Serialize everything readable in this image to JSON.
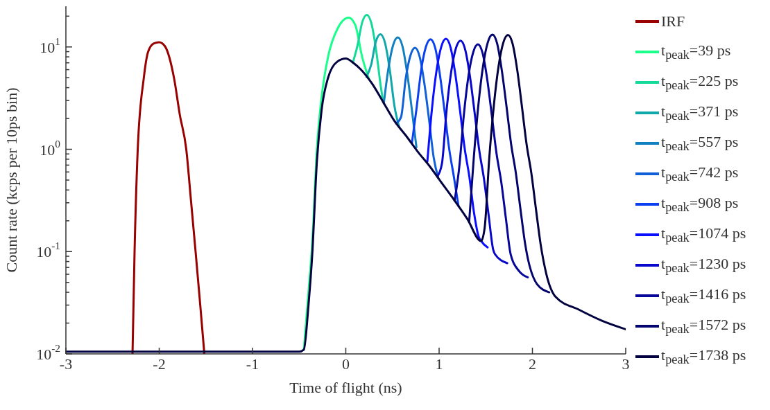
{
  "chart_data": {
    "type": "line",
    "xlabel": "Time of flight (ns)",
    "ylabel": "Count rate (kcps per 10ps bin)",
    "log": "y",
    "legend": "right",
    "marker": "none",
    "line_style": "solid",
    "xlim": [
      -3,
      3
    ],
    "xticks": [
      -3,
      -2,
      -1,
      0,
      1,
      2,
      3
    ],
    "ylim": [
      0.01,
      25
    ],
    "yticks": [
      {
        "value": 0.01,
        "label": "10$^{-2}$"
      },
      {
        "value": 0.02,
        "label": null
      },
      {
        "value": 0.03,
        "label": null
      },
      {
        "value": 0.04,
        "label": null
      },
      {
        "value": 0.05,
        "label": null
      },
      {
        "value": 0.06,
        "label": null
      },
      {
        "value": 0.07,
        "label": null
      },
      {
        "value": 0.08,
        "label": null
      },
      {
        "value": 0.09,
        "label": null
      },
      {
        "value": 0.1,
        "label": "10$^{-1}$"
      },
      {
        "value": 0.2,
        "label": null
      },
      {
        "value": 0.3,
        "label": null
      },
      {
        "value": 0.4,
        "label": null
      },
      {
        "value": 0.5,
        "label": null
      },
      {
        "value": 0.6,
        "label": null
      },
      {
        "value": 0.7,
        "label": null
      },
      {
        "value": 0.8,
        "label": null
      },
      {
        "value": 0.9,
        "label": null
      },
      {
        "value": 1,
        "label": "10$^{0}$"
      },
      {
        "value": 2,
        "label": null
      },
      {
        "value": 3,
        "label": null
      },
      {
        "value": 4,
        "label": null
      },
      {
        "value": 5,
        "label": null
      },
      {
        "value": 6,
        "label": null
      },
      {
        "value": 7,
        "label": null
      },
      {
        "value": 8,
        "label": null
      },
      {
        "value": 9,
        "label": null
      },
      {
        "value": 10,
        "label": "10$^{1}$"
      },
      {
        "value": 20,
        "label": null
      }
    ],
    "series": [
      {
        "name": "IRF",
        "color": "#990000",
        "x": [
          -2.286,
          -2.264,
          -2.23,
          -2.166,
          -2.12,
          -2.06,
          -2.0,
          -1.94,
          -1.84,
          -1.78,
          -1.71,
          -1.66,
          -1.61,
          -1.56,
          -1.516
        ],
        "values": [
          0.01,
          0.1,
          1.0,
          4.9,
          8.9,
          10.8,
          11.1,
          10.2,
          4.9,
          2.2,
          1.0,
          0.32,
          0.1,
          0.03,
          0.01
        ]
      },
      {
        "name": "t$_{peak}$=39 ps",
        "color": "#1aff8c",
        "x": [
          -0.45,
          -0.4,
          -0.36,
          -0.31,
          -0.26,
          -0.19,
          -0.09,
          0.03,
          0.1,
          0.175,
          0.25
        ],
        "values": [
          0.011,
          0.04,
          0.12,
          1.0,
          3.2,
          8,
          15,
          19.3,
          16.5,
          8,
          4.8
        ]
      },
      {
        "name": "t$_{peak}$=225 ps",
        "color": "#14d99a",
        "x": [
          0.075,
          0.125,
          0.175,
          0.225,
          0.275,
          0.325,
          0.375,
          0.4
        ],
        "values": [
          7.0,
          10.3,
          17.3,
          20.6,
          16.9,
          9.3,
          4.1,
          2.9
        ]
      },
      {
        "name": "t$_{peak}$=371 ps",
        "color": "#10a8a8",
        "x": [
          0.221,
          0.271,
          0.321,
          0.371,
          0.421,
          0.471,
          0.521,
          0.571
        ],
        "values": [
          5.1,
          6.65,
          11.2,
          13.3,
          10.9,
          6.0,
          2.66,
          1.66
        ]
      },
      {
        "name": "t$_{peak}$=557 ps",
        "color": "#1080c0",
        "x": [
          0.407,
          0.457,
          0.507,
          0.557,
          0.607,
          0.657,
          0.707,
          0.757
        ],
        "values": [
          2.8,
          6.2,
          10.4,
          12.4,
          10.2,
          5.6,
          2.48,
          1.05
        ]
      },
      {
        "name": "t$_{peak}$=742 ps",
        "color": "#1060d8",
        "x": [
          0.542,
          0.592,
          0.642,
          0.692,
          0.742,
          0.792,
          0.842,
          0.892,
          0.942,
          0.992
        ],
        "values": [
          1.8,
          2.06,
          4.9,
          8.2,
          9.8,
          8.0,
          4.4,
          1.96,
          0.83,
          0.52
        ]
      },
      {
        "name": "t$_{peak}$=908 ps",
        "color": "#0a40f0",
        "x": [
          0.708,
          0.758,
          0.808,
          0.858,
          0.908,
          0.958,
          1.008,
          1.058,
          1.108,
          1.158,
          1.208
        ],
        "values": [
          1.14,
          2.5,
          5.95,
          10.0,
          11.9,
          9.8,
          5.4,
          2.38,
          1.01,
          0.54,
          0.277
        ]
      },
      {
        "name": "t$_{peak}$=1074 ps",
        "color": "#0a10ff",
        "x": [
          0.874,
          0.924,
          0.974,
          1.024,
          1.074,
          1.124,
          1.174,
          1.224,
          1.274,
          1.324,
          1.374,
          1.424,
          1.45,
          1.52
        ],
        "values": [
          0.76,
          2.52,
          6.0,
          10.1,
          12,
          9.8,
          5.4,
          2.4,
          1.02,
          0.54,
          0.24,
          0.14,
          0.127,
          0.11
        ]
      },
      {
        "name": "t$_{peak}$=1230 ps",
        "color": "#0808cc",
        "x": [
          0.98,
          1.03,
          1.08,
          1.13,
          1.18,
          1.23,
          1.28,
          1.33,
          1.38,
          1.43,
          1.48,
          1.53,
          1.58,
          1.6,
          1.73
        ],
        "values": [
          0.54,
          0.72,
          2.4,
          5.75,
          9.7,
          11.5,
          9.4,
          5.2,
          2.3,
          0.98,
          0.52,
          0.23,
          0.104,
          0.094,
          0.077
        ]
      },
      {
        "name": "t$_{peak}$=1416 ps",
        "color": "#060699",
        "x": [
          1.166,
          1.216,
          1.266,
          1.316,
          1.366,
          1.416,
          1.466,
          1.516,
          1.566,
          1.616,
          1.666,
          1.716,
          1.766,
          1.86,
          1.95
        ],
        "values": [
          0.314,
          0.67,
          2.2,
          5.3,
          8.9,
          10.6,
          8.7,
          4.8,
          2.1,
          0.9,
          0.48,
          0.21,
          0.095,
          0.064,
          0.056
        ]
      },
      {
        "name": "t$_{peak}$=1572 ps",
        "color": "#04046e",
        "x": [
          1.322,
          1.372,
          1.422,
          1.472,
          1.522,
          1.572,
          1.622,
          1.672,
          1.722,
          1.772,
          1.822,
          1.872,
          1.922,
          2.05,
          2.18
        ],
        "values": [
          0.195,
          0.83,
          2.77,
          6.6,
          11.1,
          13.2,
          10.8,
          5.9,
          2.64,
          1.12,
          0.59,
          0.26,
          0.119,
          0.048,
          0.04
        ]
      },
      {
        "name": "t$_{peak}$=1738 ps",
        "color": "#020240",
        "x": [
          -3,
          -2.5,
          -2,
          -1.5,
          -1,
          -0.5,
          -0.45,
          -0.4,
          -0.36,
          -0.31,
          -0.26,
          -0.19,
          -0.09,
          0,
          0.08,
          0.155,
          0.28,
          0.4,
          0.52,
          0.65,
          0.77,
          0.9,
          1.02,
          1.14,
          1.3,
          1.45,
          1.488,
          1.538,
          1.588,
          1.638,
          1.688,
          1.738,
          1.788,
          1.838,
          1.888,
          1.938,
          1.988,
          2.038,
          2.088,
          2.15,
          2.25,
          2.5,
          2.75,
          3
        ],
        "values": [
          0.0105,
          0.0105,
          0.0105,
          0.0105,
          0.0105,
          0.0105,
          0.011,
          0.03,
          0.093,
          0.76,
          2.4,
          5.0,
          7.2,
          7.7,
          7.0,
          6.1,
          4.4,
          2.9,
          1.9,
          1.34,
          0.95,
          0.68,
          0.48,
          0.34,
          0.21,
          0.127,
          0.17,
          0.83,
          2.75,
          6.55,
          11.0,
          13.1,
          10.7,
          5.9,
          2.6,
          1.11,
          0.59,
          0.26,
          0.118,
          0.06,
          0.036,
          0.027,
          0.021,
          0.0174
        ]
      }
    ]
  }
}
